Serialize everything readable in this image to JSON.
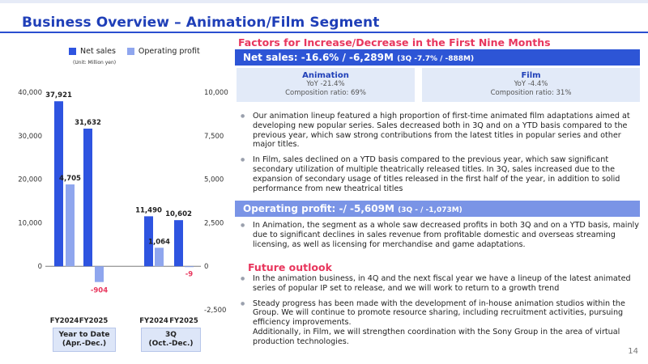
{
  "title": "Business Overview – Animation/Film Segment",
  "chart_data": {
    "type": "bar",
    "unit": "(Unit: Million yen)",
    "legend": [
      "Net sales",
      "Operating profit"
    ],
    "series_colors": {
      "Net sales": "#2e54e0",
      "Operating profit": "#8fa6ee"
    },
    "left_axis": {
      "ticks": [
        "0",
        "10,000",
        "20,000",
        "30,000",
        "40,000"
      ],
      "range": [
        -10000,
        40000
      ]
    },
    "right_axis": {
      "ticks": [
        "-2,500",
        "0",
        "2,500",
        "5,000",
        "7,500",
        "10,000"
      ],
      "range": [
        -2500,
        10000
      ]
    },
    "groups": [
      {
        "period": "Year to Date\n(Apr.-Dec.)",
        "period_lines": [
          "Year to Date",
          "(Apr.-Dec.)"
        ],
        "categories": [
          "FY2024",
          "FY2025"
        ],
        "net_sales": [
          37921,
          31632
        ],
        "net_sales_labels": [
          "37,921",
          "31,632"
        ],
        "operating_profit": [
          4705,
          -904
        ],
        "operating_profit_labels": [
          "4,705",
          "-904"
        ]
      },
      {
        "period": "3Q\n(Oct.-Dec.)",
        "period_lines": [
          "3Q",
          "(Oct.-Dec.)"
        ],
        "categories": [
          "FY2024",
          "FY2025"
        ],
        "net_sales": [
          11490,
          10602
        ],
        "net_sales_labels": [
          "11,490",
          "10,602"
        ],
        "operating_profit": [
          1064,
          -9
        ],
        "operating_profit_labels": [
          "1,064",
          "-9"
        ]
      }
    ]
  },
  "right": {
    "factors_heading": "Factors for Increase/Decrease in the First Nine Months",
    "net_sales_heading": "Net sales: -16.6% / -6,289M",
    "net_sales_sub": "(3Q -7.7% / -888M)",
    "segments": [
      {
        "name": "Animation",
        "yoy": "YoY -21.4%",
        "ratio": "Composition ratio: 69%"
      },
      {
        "name": "Film",
        "yoy": "YoY -4.4%",
        "ratio": "Composition ratio: 31%"
      }
    ],
    "net_sales_bullets": [
      "Our animation lineup featured a high proportion of first-time animated film adaptations aimed at developing new popular series. Sales decreased both in 3Q and on a YTD basis compared to the previous year, which saw strong contributions from the latest titles in popular series and other major titles.",
      "In Film, sales declined on a YTD basis compared to the previous year, which saw significant secondary utilization of multiple theatrically released titles. In 3Q, sales increased due to the expansion of secondary usage of titles released in the first half of the year, in addition to solid performance from new theatrical titles"
    ],
    "op_heading": "Operating profit: -/ -5,609M",
    "op_sub": "(3Q - / -1,073M)",
    "op_bullets": [
      "In Animation, the segment as a whole saw decreased profits in both 3Q and on a YTD basis, mainly due to significant declines in sales revenue from profitable domestic and overseas streaming licensing, as well as licensing for merchandise and game adaptations."
    ],
    "outlook_heading": "Future outlook",
    "outlook_bullets": [
      "In the animation business, in 4Q and the next fiscal year we have a lineup of the latest animated series of popular IP set to release, and we will work to return to a growth trend",
      "Steady progress has been made with the development of in-house animation studios within the Group. We will continue to promote resource sharing, including recruitment activities, pursuing efficiency improvements.\nAdditionally, in Film, we will strengthen coordination with the Sony Group in the area of virtual production technologies."
    ]
  },
  "page_number": "14"
}
